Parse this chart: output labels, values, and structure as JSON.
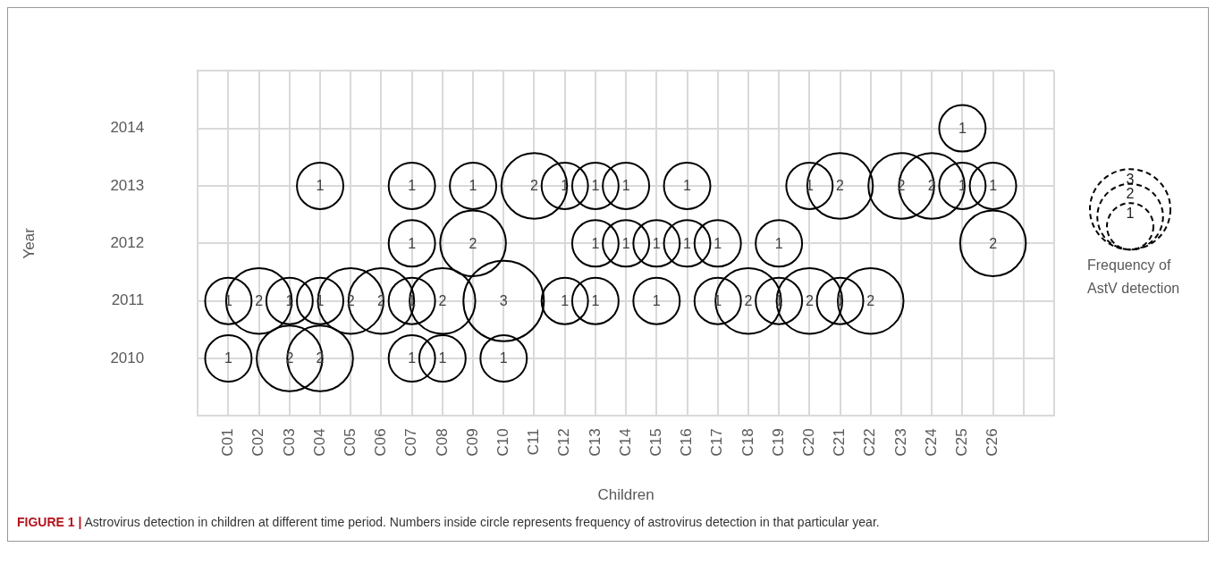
{
  "chart_data": {
    "type": "bubble",
    "xlabel": "Children",
    "ylabel": "Year",
    "legend_title": "Frequency of AstV detection",
    "size_legend": [
      1,
      2,
      3
    ],
    "categories": [
      null,
      "C01",
      "C02",
      "C03",
      "C04",
      "C05",
      "C06",
      "C07",
      "C08",
      "C09",
      "C10",
      "C11",
      "C12",
      "C13",
      "C14",
      "C15",
      "C16",
      "C17",
      "C18",
      "C19",
      "C20",
      "C21",
      "C22",
      "C23",
      "C24",
      "C25",
      "C26",
      null,
      null
    ],
    "series": [
      {
        "color": "#000000",
        "x": [
          "C25",
          "C04",
          "C07",
          "C09",
          "C11",
          "C12",
          "C13",
          "C14",
          "C16",
          "C20",
          "C21",
          "C23",
          "C24",
          "C25",
          "C26",
          "C07",
          "C09",
          "C13",
          "C14",
          "C15",
          "C16",
          "C17",
          "C19",
          "C26",
          "C01",
          "C02",
          "C03",
          "C04",
          "C05",
          "C06",
          "C07",
          "C08",
          "C10",
          "C12",
          "C13",
          "C15",
          "C17",
          "C18",
          "C19",
          "C20",
          "C21",
          "C22",
          "C01",
          "C03",
          "C04",
          "C07",
          "C08",
          "C10"
        ],
        "values": [
          2014,
          2013,
          2013,
          2013,
          2013,
          2013,
          2013,
          2013,
          2013,
          2013,
          2013,
          2013,
          2013,
          2013,
          2013,
          2012,
          2012,
          2012,
          2012,
          2012,
          2012,
          2012,
          2012,
          2012,
          2011,
          2011,
          2011,
          2011,
          2011,
          2011,
          2011,
          2011,
          2011,
          2011,
          2011,
          2011,
          2011,
          2011,
          2011,
          2011,
          2011,
          2011,
          2010,
          2010,
          2010,
          2010,
          2010,
          2010
        ],
        "sizes": [
          1,
          1,
          1,
          1,
          2,
          1,
          1,
          1,
          1,
          1,
          2,
          2,
          2,
          1,
          1,
          1,
          2,
          1,
          1,
          1,
          1,
          1,
          1,
          2,
          1,
          2,
          1,
          1,
          2,
          2,
          1,
          2,
          3,
          1,
          1,
          1,
          1,
          2,
          1,
          2,
          1,
          2,
          1,
          2,
          2,
          1,
          1,
          1
        ],
        "value_labels": [
          "1",
          "1",
          "1",
          "1",
          "2",
          "1",
          "1",
          "1",
          "1",
          "1",
          "2",
          "2",
          "2",
          "1",
          "1",
          "1",
          "2",
          "1",
          "1",
          "1",
          "1",
          "1",
          "1",
          "2",
          "1",
          "2",
          "1",
          "1",
          "2",
          "2",
          "1",
          "2",
          "3",
          "1",
          "1",
          "1",
          "1",
          "2",
          "1",
          "2",
          "1",
          "2",
          "1",
          "2",
          "2",
          "1",
          "1",
          "1"
        ]
      }
    ],
    "ylim": [
      2009,
      2015
    ],
    "yticks": [
      {
        "value": 2009,
        "label": null
      },
      2010,
      2011,
      2012,
      2013,
      2014,
      {
        "value": 2015,
        "label": null
      }
    ],
    "grid": true,
    "annotations": [
      "FIGURE 1 | Astrovirus detection in children at different time period. Numbers inside circle represents frequency of astrovirus detection in that particular year."
    ]
  }
}
